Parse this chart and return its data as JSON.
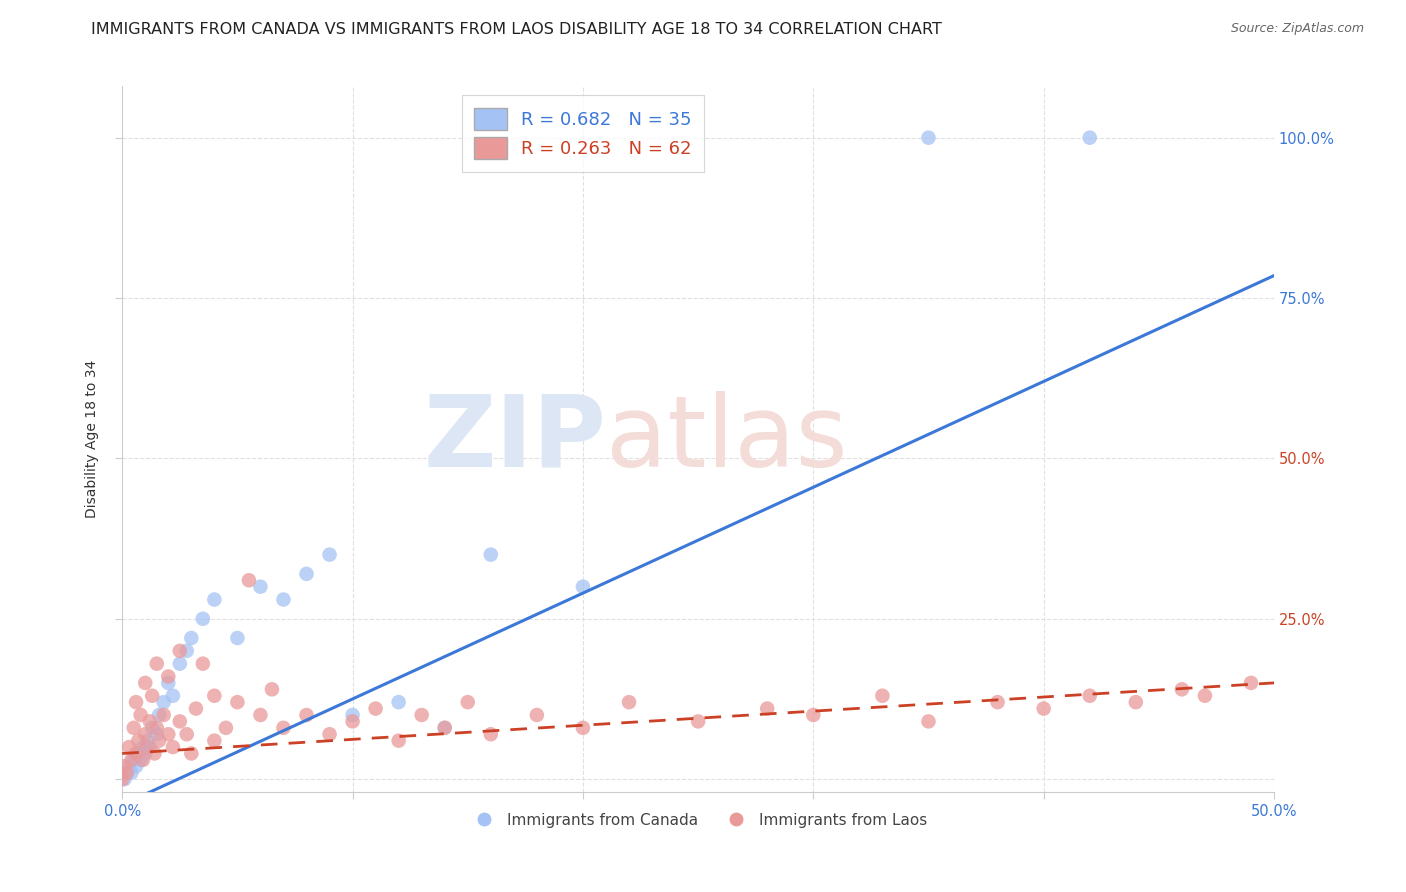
{
  "title": "IMMIGRANTS FROM CANADA VS IMMIGRANTS FROM LAOS DISABILITY AGE 18 TO 34 CORRELATION CHART",
  "source": "Source: ZipAtlas.com",
  "ylabel": "Disability Age 18 to 34",
  "xlim": [
    0.0,
    0.5
  ],
  "ylim": [
    -0.02,
    1.08
  ],
  "canada_color": "#a4c2f4",
  "laos_color": "#ea9999",
  "canada_line_color": "#3c78d8",
  "laos_line_color": "#cc4125",
  "canada_R": 0.682,
  "canada_N": 35,
  "laos_R": 0.263,
  "laos_N": 62,
  "legend_canada_label": "R = 0.682   N = 35",
  "legend_laos_label": "R = 0.263   N = 62",
  "bottom_legend_canada": "Immigrants from Canada",
  "bottom_legend_laos": "Immigrants from Laos",
  "watermark_zip": "ZIP",
  "watermark_atlas": "atlas",
  "canada_points_x": [
    0.001,
    0.002,
    0.003,
    0.004,
    0.005,
    0.006,
    0.007,
    0.008,
    0.009,
    0.01,
    0.011,
    0.012,
    0.013,
    0.015,
    0.016,
    0.018,
    0.02,
    0.022,
    0.025,
    0.028,
    0.03,
    0.035,
    0.04,
    0.05,
    0.06,
    0.07,
    0.08,
    0.09,
    0.1,
    0.12,
    0.14,
    0.16,
    0.2,
    0.35,
    0.42
  ],
  "canada_points_y": [
    0.0,
    0.01,
    0.02,
    0.01,
    0.03,
    0.02,
    0.04,
    0.03,
    0.05,
    0.04,
    0.06,
    0.05,
    0.08,
    0.07,
    0.1,
    0.12,
    0.15,
    0.13,
    0.18,
    0.2,
    0.22,
    0.25,
    0.28,
    0.22,
    0.3,
    0.28,
    0.32,
    0.35,
    0.1,
    0.12,
    0.08,
    0.35,
    0.3,
    1.0,
    1.0
  ],
  "laos_points_x": [
    0.0,
    0.001,
    0.002,
    0.003,
    0.004,
    0.005,
    0.006,
    0.006,
    0.007,
    0.008,
    0.009,
    0.01,
    0.01,
    0.011,
    0.012,
    0.013,
    0.014,
    0.015,
    0.015,
    0.016,
    0.018,
    0.02,
    0.02,
    0.022,
    0.025,
    0.025,
    0.028,
    0.03,
    0.032,
    0.035,
    0.04,
    0.04,
    0.045,
    0.05,
    0.055,
    0.06,
    0.065,
    0.07,
    0.08,
    0.09,
    0.1,
    0.11,
    0.12,
    0.13,
    0.14,
    0.15,
    0.16,
    0.18,
    0.2,
    0.22,
    0.25,
    0.28,
    0.3,
    0.33,
    0.35,
    0.38,
    0.4,
    0.42,
    0.44,
    0.46,
    0.47,
    0.49
  ],
  "laos_points_y": [
    0.0,
    0.02,
    0.01,
    0.05,
    0.03,
    0.08,
    0.04,
    0.12,
    0.06,
    0.1,
    0.03,
    0.07,
    0.15,
    0.05,
    0.09,
    0.13,
    0.04,
    0.08,
    0.18,
    0.06,
    0.1,
    0.07,
    0.16,
    0.05,
    0.09,
    0.2,
    0.07,
    0.04,
    0.11,
    0.18,
    0.06,
    0.13,
    0.08,
    0.12,
    0.31,
    0.1,
    0.14,
    0.08,
    0.1,
    0.07,
    0.09,
    0.11,
    0.06,
    0.1,
    0.08,
    0.12,
    0.07,
    0.1,
    0.08,
    0.12,
    0.09,
    0.11,
    0.1,
    0.13,
    0.09,
    0.12,
    0.11,
    0.13,
    0.12,
    0.14,
    0.13,
    0.15
  ],
  "grid_color": "#e0e0e0",
  "background_color": "#ffffff",
  "title_fontsize": 11.5,
  "axis_label_fontsize": 10,
  "tick_fontsize": 10.5,
  "canada_line_slope": 1.65,
  "canada_line_intercept": -0.04,
  "laos_line_slope": 0.22,
  "laos_line_intercept": 0.04
}
